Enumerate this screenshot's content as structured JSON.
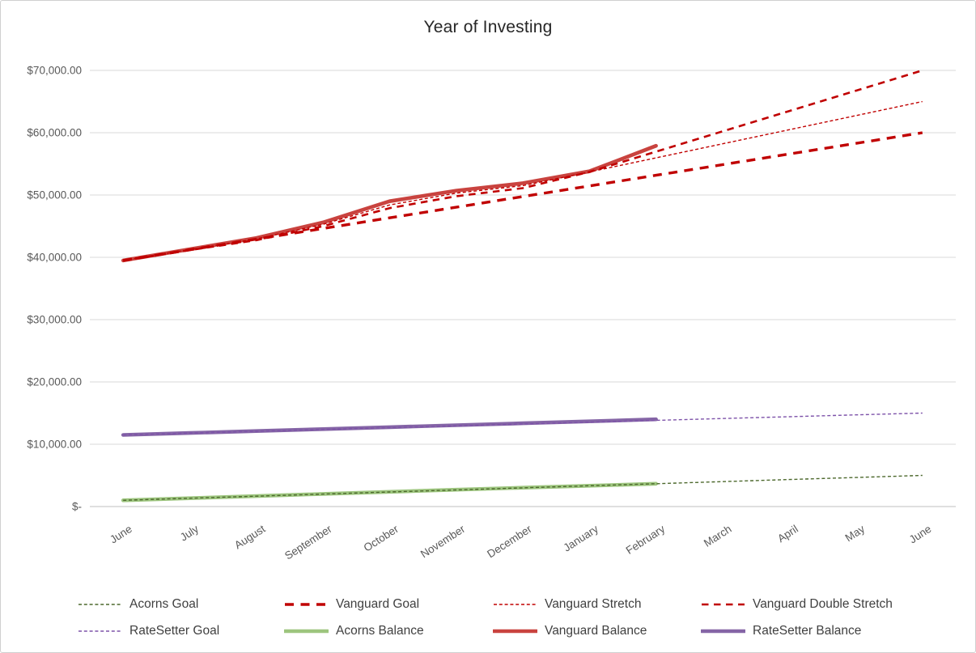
{
  "chart_data": {
    "type": "line",
    "title": "Year of Investing",
    "xlabel": "",
    "ylabel": "",
    "ylim": [
      0,
      70000
    ],
    "grid": true,
    "grid_color": "#d9d9d9",
    "axis_line_color": "#bfbfbf",
    "tick_label_color": "#595959",
    "title_color": "#262626",
    "legend_position": "bottom",
    "x_labels": [
      "June",
      "July",
      "August",
      "September",
      "October",
      "November",
      "December",
      "January",
      "February",
      "March",
      "April",
      "May",
      "June"
    ],
    "y_ticks": [
      {
        "value": 70000,
        "label": "$70,000.00"
      },
      {
        "value": 60000,
        "label": "$60,000.00"
      },
      {
        "value": 50000,
        "label": "$50,000.00"
      },
      {
        "value": 40000,
        "label": "$40,000.00"
      },
      {
        "value": 30000,
        "label": "$30,000.00"
      },
      {
        "value": 20000,
        "label": "$20,000.00"
      },
      {
        "value": 10000,
        "label": "$10,000.00"
      },
      {
        "value": 0,
        "label": "$-"
      }
    ],
    "series": [
      {
        "name": "Acorns Goal",
        "color": "#4c682c",
        "style": "thin-dash",
        "values": [
          1000,
          1333,
          1667,
          2000,
          2333,
          2667,
          3000,
          3333,
          3667,
          4000,
          4333,
          4667,
          5000
        ]
      },
      {
        "name": "Vanguard Goal",
        "color": "#c00000",
        "style": "thick-dash",
        "values": [
          39500,
          41208,
          42917,
          44625,
          46333,
          48042,
          49750,
          51458,
          53167,
          54875,
          56583,
          58292,
          60000
        ]
      },
      {
        "name": "Vanguard Stretch",
        "color": "#c00000",
        "style": "thin-dash",
        "values": [
          39500,
          41250,
          42950,
          45300,
          48400,
          50300,
          51500,
          53700,
          55960,
          58220,
          60480,
          62740,
          65000
        ]
      },
      {
        "name": "Vanguard Double Stretch",
        "color": "#c00000",
        "style": "med-dash",
        "values": [
          39500,
          41150,
          42750,
          45000,
          47900,
          49800,
          51100,
          53700,
          56960,
          60220,
          63480,
          66740,
          70000
        ]
      },
      {
        "name": "RateSetter Goal",
        "color": "#7d52a9",
        "style": "thin-dash",
        "values": [
          11500,
          11792,
          12083,
          12375,
          12667,
          12958,
          13250,
          13542,
          13833,
          14125,
          14417,
          14708,
          15000
        ]
      },
      {
        "name": "Acorns Balance",
        "color": "#9dc57e",
        "style": "solid",
        "values": [
          1000,
          1340,
          1680,
          2020,
          2360,
          2700,
          3020,
          3340,
          3660,
          null,
          null,
          null,
          null
        ]
      },
      {
        "name": "Vanguard Balance",
        "color": "#c9433f",
        "style": "solid",
        "values": [
          39500,
          41300,
          43100,
          45600,
          49000,
          50700,
          51900,
          53800,
          57900,
          null,
          null,
          null,
          null
        ]
      },
      {
        "name": "RateSetter Balance",
        "color": "#8565a6",
        "style": "solid",
        "values": [
          11500,
          11810,
          12120,
          12430,
          12740,
          13050,
          13360,
          13670,
          14000,
          null,
          null,
          null,
          null
        ]
      }
    ]
  }
}
